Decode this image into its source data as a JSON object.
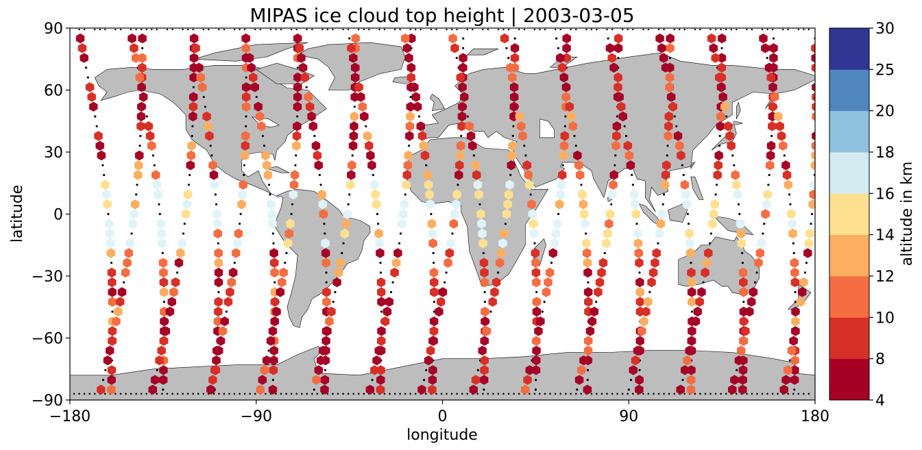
{
  "chart_data": {
    "type": "map-scatter",
    "title": "MIPAS ice cloud top height | 2003-03-05",
    "xlabel": "longitude",
    "ylabel": "latitude",
    "xlim": [
      -180,
      180
    ],
    "ylim": [
      -90,
      90
    ],
    "xticks": [
      -180,
      -90,
      0,
      90,
      180
    ],
    "yticks": [
      -90,
      -60,
      -30,
      0,
      30,
      60,
      90
    ],
    "xtick_labels": [
      "−180",
      "−90",
      "0",
      "90",
      "180"
    ],
    "ytick_labels": [
      "−90",
      "−60",
      "−30",
      "0",
      "30",
      "60",
      "90"
    ],
    "land_color": "#bdbdbd",
    "marker": "hexagon",
    "colorbar": {
      "label": "altitude in km",
      "ticks": [
        4,
        8,
        10,
        12,
        14,
        16,
        18,
        20,
        25,
        30
      ],
      "tick_labels": [
        "4",
        "8",
        "10",
        "12",
        "14",
        "16",
        "18",
        "20",
        "25",
        "30"
      ],
      "colors": [
        "#a50026",
        "#d73027",
        "#f46d43",
        "#fdae61",
        "#fee090",
        "#e0f3f8",
        "#abd9e9",
        "#74add1",
        "#313695"
      ],
      "palette_edges": [
        "#a50026",
        "#d73027",
        "#f46d43",
        "#fdae61",
        "#fee090",
        "#d4ebf2",
        "#8ec1dd",
        "#4f86bd",
        "#313695"
      ]
    },
    "orbits": [
      {
        "lon_start": -175,
        "lon_end": -160,
        "direction": "down"
      },
      {
        "lon_start": -165,
        "lon_end": -145,
        "direction": "up"
      },
      {
        "lon_start": -150,
        "lon_end": -135,
        "direction": "down"
      },
      {
        "lon_start": -140,
        "lon_end": -120,
        "direction": "up"
      },
      {
        "lon_start": -120,
        "lon_end": -110,
        "direction": "down"
      },
      {
        "lon_start": -112,
        "lon_end": -95,
        "direction": "up"
      },
      {
        "lon_start": -95,
        "lon_end": -82,
        "direction": "down"
      },
      {
        "lon_start": -88,
        "lon_end": -70,
        "direction": "up"
      },
      {
        "lon_start": -70,
        "lon_end": -57,
        "direction": "down"
      },
      {
        "lon_start": -62,
        "lon_end": -42,
        "direction": "up"
      },
      {
        "lon_start": -45,
        "lon_end": -30,
        "direction": "down"
      },
      {
        "lon_start": -35,
        "lon_end": -15,
        "direction": "up"
      },
      {
        "lon_start": -18,
        "lon_end": -5,
        "direction": "down"
      },
      {
        "lon_start": -10,
        "lon_end": 10,
        "direction": "up"
      },
      {
        "lon_start": 5,
        "lon_end": 20,
        "direction": "down"
      },
      {
        "lon_start": 15,
        "lon_end": 35,
        "direction": "up"
      },
      {
        "lon_start": 30,
        "lon_end": 45,
        "direction": "down"
      },
      {
        "lon_start": 40,
        "lon_end": 60,
        "direction": "up"
      },
      {
        "lon_start": 55,
        "lon_end": 70,
        "direction": "down"
      },
      {
        "lon_start": 65,
        "lon_end": 85,
        "direction": "up"
      },
      {
        "lon_start": 80,
        "lon_end": 95,
        "direction": "down"
      },
      {
        "lon_start": 90,
        "lon_end": 110,
        "direction": "up"
      },
      {
        "lon_start": 105,
        "lon_end": 120,
        "direction": "down"
      },
      {
        "lon_start": 115,
        "lon_end": 135,
        "direction": "up"
      },
      {
        "lon_start": 130,
        "lon_end": 145,
        "direction": "down"
      },
      {
        "lon_start": 140,
        "lon_end": 160,
        "direction": "up"
      },
      {
        "lon_start": 155,
        "lon_end": 170,
        "direction": "down"
      },
      {
        "lon_start": 165,
        "lon_end": 180,
        "direction": "up"
      }
    ]
  }
}
